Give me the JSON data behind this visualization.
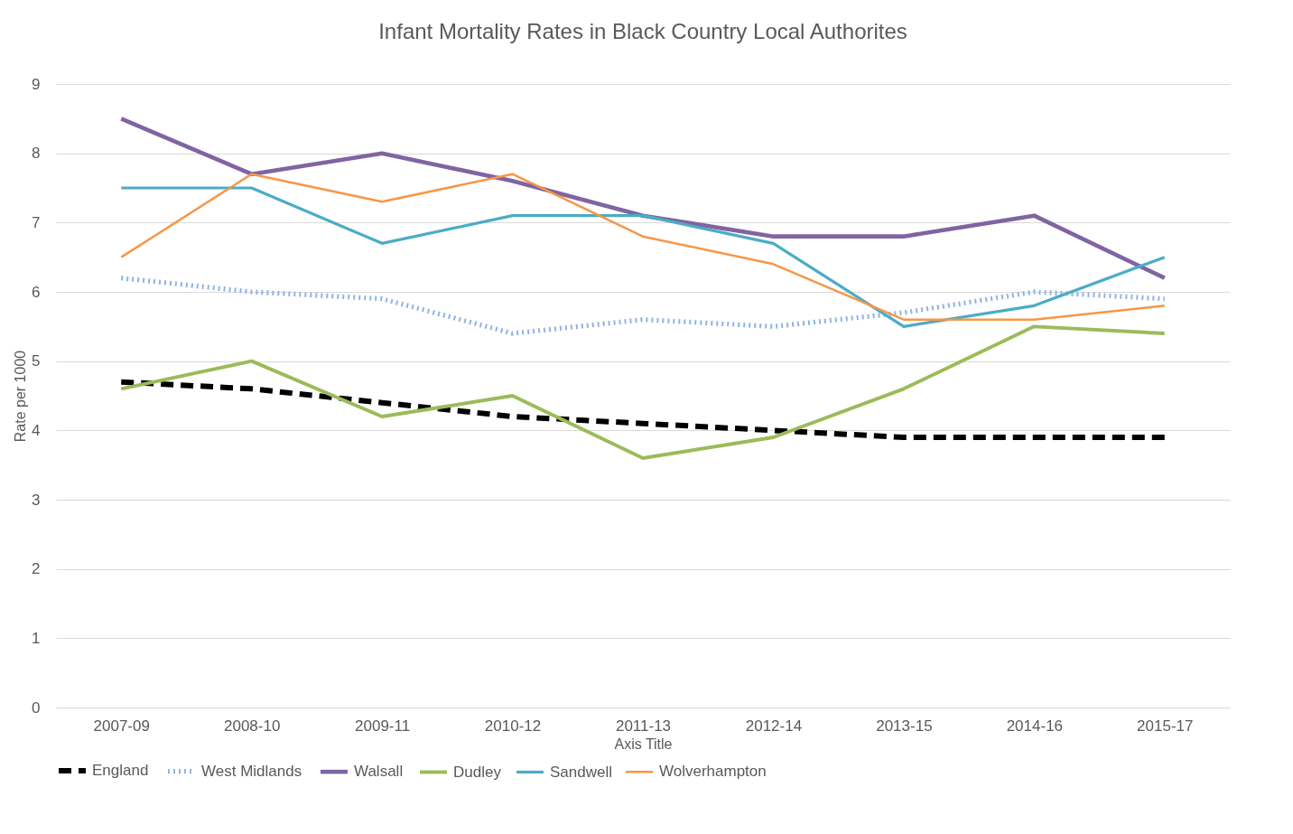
{
  "chart_data": {
    "type": "line",
    "title": "Infant Mortality Rates in Black Country Local Authorites",
    "xlabel": "Axis Title",
    "ylabel": "Rate per 1000",
    "categories": [
      "2007-09",
      "2008-10",
      "2009-11",
      "2010-12",
      "2011-13",
      "2012-14",
      "2013-15",
      "2014-16",
      "2015-17"
    ],
    "series": [
      {
        "name": "England",
        "color": "#000000",
        "line_style": "dashed",
        "values": [
          4.7,
          4.6,
          4.4,
          4.2,
          4.1,
          4.0,
          3.9,
          3.9,
          3.9
        ]
      },
      {
        "name": "West Midlands",
        "color": "#8eb4e3",
        "line_style": "dotted",
        "values": [
          6.2,
          6.0,
          5.9,
          5.4,
          5.6,
          5.5,
          5.7,
          6.0,
          5.9
        ]
      },
      {
        "name": "Walsall",
        "color": "#8064a2",
        "line_style": "solid",
        "values": [
          8.5,
          7.7,
          8.0,
          7.6,
          7.1,
          6.8,
          6.8,
          7.1,
          6.2
        ]
      },
      {
        "name": "Dudley",
        "color": "#9bbb59",
        "line_style": "solid",
        "values": [
          4.6,
          5.0,
          4.2,
          4.5,
          3.6,
          3.9,
          4.6,
          5.5,
          5.4
        ]
      },
      {
        "name": "Sandwell",
        "color": "#4bacc6",
        "line_style": "solid",
        "values": [
          7.5,
          7.5,
          6.7,
          7.1,
          7.1,
          6.7,
          5.5,
          5.8,
          6.5
        ]
      },
      {
        "name": "Wolverhampton",
        "color": "#f79646",
        "line_style": "solid",
        "values": [
          6.5,
          7.7,
          7.3,
          7.7,
          6.8,
          6.4,
          5.6,
          5.6,
          5.8
        ]
      }
    ],
    "ylim": [
      0,
      9
    ],
    "yticks": [
      0,
      1,
      2,
      3,
      4,
      5,
      6,
      7,
      8,
      9
    ],
    "grid": "y",
    "legend": "bottom",
    "marker": "none"
  }
}
